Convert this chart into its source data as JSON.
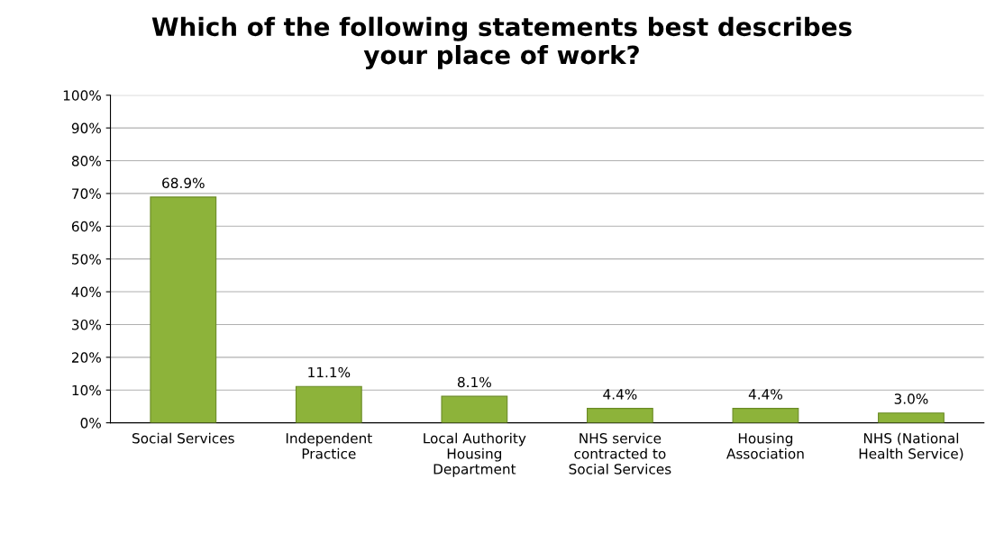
{
  "chart_data": {
    "type": "bar",
    "title": "Which of the following statements best describes\nyour place of work?",
    "categories": [
      "Social Services",
      "Independent\nPractice",
      "Local Authority\nHousing\nDepartment",
      "NHS service\ncontracted to\nSocial Services",
      "Housing\nAssociation",
      "NHS (National\nHealth Service)"
    ],
    "values": [
      68.9,
      11.1,
      8.1,
      4.4,
      4.4,
      3.0
    ],
    "value_labels": [
      "68.9%",
      "11.1%",
      "8.1%",
      "4.4%",
      "4.4%",
      "3.0%"
    ],
    "color": "#8db33a",
    "ylim": [
      0,
      100
    ],
    "yticks": [
      {
        "value": 0,
        "label": "0%"
      },
      {
        "value": 10,
        "label": "10%"
      },
      {
        "value": 20,
        "label": "20%"
      },
      {
        "value": 30,
        "label": "30%"
      },
      {
        "value": 40,
        "label": "40%"
      },
      {
        "value": 50,
        "label": "50%"
      },
      {
        "value": 60,
        "label": "60%"
      },
      {
        "value": 70,
        "label": "70%"
      },
      {
        "value": 80,
        "label": "80%"
      },
      {
        "value": 90,
        "label": "90%"
      },
      {
        "value": 100,
        "label": "100%"
      }
    ],
    "grid": "y"
  }
}
